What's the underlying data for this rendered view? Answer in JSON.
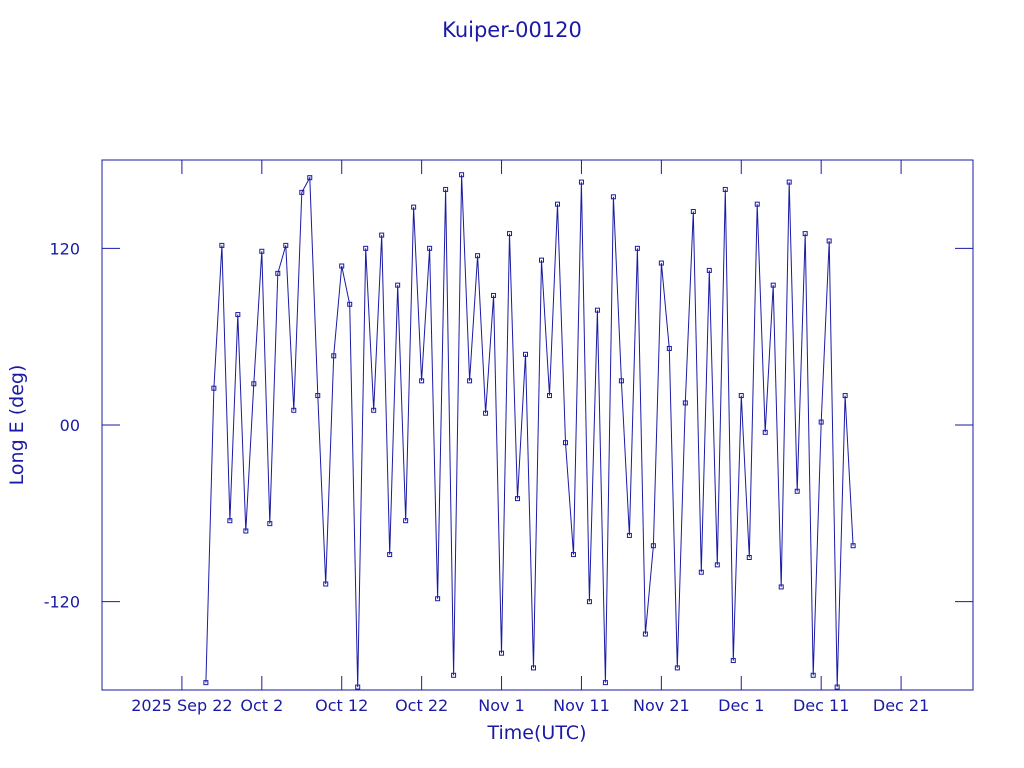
{
  "chart_data": {
    "type": "line",
    "title": "Kuiper-00120",
    "xlabel": "Time(UTC)",
    "ylabel": "Long E (deg)",
    "color": "#1a1aa6",
    "markers": "square",
    "xlim": [
      "2025-09-12",
      "2025-12-30"
    ],
    "xticks": [
      {
        "value": "2025-09-22",
        "label": "2025 Sep 22"
      },
      {
        "value": "2025-10-02",
        "label": "Oct  2"
      },
      {
        "value": "2025-10-12",
        "label": "Oct 12"
      },
      {
        "value": "2025-10-22",
        "label": "Oct 22"
      },
      {
        "value": "2025-11-01",
        "label": "Nov  1"
      },
      {
        "value": "2025-11-11",
        "label": "Nov 11"
      },
      {
        "value": "2025-11-21",
        "label": "Nov 21"
      },
      {
        "value": "2025-12-01",
        "label": "Dec  1"
      },
      {
        "value": "2025-12-11",
        "label": "Dec 11"
      },
      {
        "value": "2025-12-21",
        "label": "Dec 21"
      }
    ],
    "ylim": [
      -180,
      180
    ],
    "yticks": [
      -120,
      {
        "value": 0,
        "label": "00"
      },
      120
    ],
    "x": [
      "2025-09-25",
      "2025-09-26",
      "2025-09-27",
      "2025-09-28",
      "2025-09-29",
      "2025-09-30",
      "2025-10-01",
      "2025-10-02",
      "2025-10-03",
      "2025-10-04",
      "2025-10-05",
      "2025-10-06",
      "2025-10-07",
      "2025-10-08",
      "2025-10-09",
      "2025-10-10",
      "2025-10-11",
      "2025-10-12",
      "2025-10-13",
      "2025-10-14",
      "2025-10-15",
      "2025-10-16",
      "2025-10-17",
      "2025-10-18",
      "2025-10-19",
      "2025-10-20",
      "2025-10-21",
      "2025-10-22",
      "2025-10-23",
      "2025-10-24",
      "2025-10-25",
      "2025-10-26",
      "2025-10-27",
      "2025-10-28",
      "2025-10-29",
      "2025-10-30",
      "2025-10-31",
      "2025-11-01",
      "2025-11-02",
      "2025-11-03",
      "2025-11-04",
      "2025-11-05",
      "2025-11-06",
      "2025-11-07",
      "2025-11-08",
      "2025-11-09",
      "2025-11-10",
      "2025-11-11",
      "2025-11-12",
      "2025-11-13",
      "2025-11-14",
      "2025-11-15",
      "2025-11-16",
      "2025-11-17",
      "2025-11-18",
      "2025-11-19",
      "2025-11-20",
      "2025-11-21",
      "2025-11-22",
      "2025-11-23",
      "2025-11-24",
      "2025-11-25",
      "2025-11-26",
      "2025-11-27",
      "2025-11-28",
      "2025-11-29",
      "2025-11-30",
      "2025-12-01",
      "2025-12-02",
      "2025-12-03",
      "2025-12-04",
      "2025-12-05",
      "2025-12-06",
      "2025-12-07",
      "2025-12-08",
      "2025-12-09",
      "2025-12-10",
      "2025-12-11",
      "2025-12-12",
      "2025-12-13",
      "2025-12-14",
      "2025-12-15"
    ],
    "series": [
      {
        "name": "Long E",
        "color": "#1a1aa6",
        "values": [
          -175,
          25,
          122,
          -65,
          75,
          -72,
          28,
          118,
          -67,
          103,
          122,
          10,
          158,
          168,
          20,
          -108,
          47,
          108,
          82,
          -178,
          120,
          10,
          129,
          -88,
          95,
          -65,
          148,
          30,
          120,
          -118,
          160,
          -170,
          170,
          30,
          115,
          8,
          88,
          -155,
          130,
          -50,
          48,
          -165,
          112,
          20,
          150,
          -12,
          -88,
          165,
          -120,
          78,
          -175,
          155,
          30,
          -75,
          120,
          -142,
          -82,
          110,
          52,
          -165,
          15,
          145,
          -100,
          105,
          -95,
          160,
          -160,
          20,
          -90,
          150,
          -5,
          95,
          -110,
          165,
          -45,
          130,
          -170,
          2,
          125,
          -178,
          20,
          -82
        ]
      }
    ]
  }
}
